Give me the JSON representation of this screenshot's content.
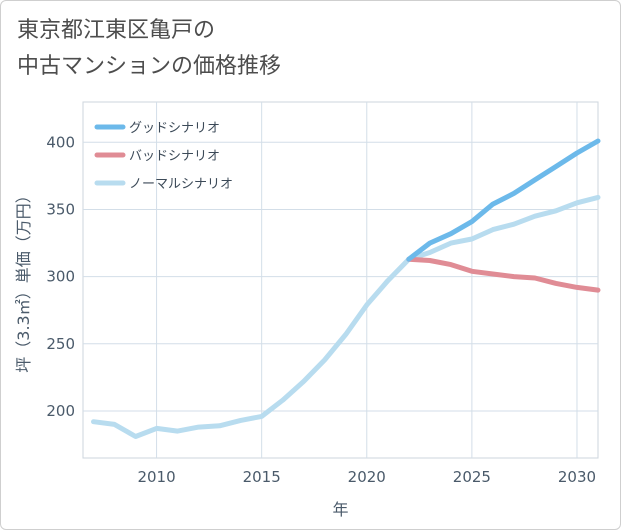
{
  "title": "東京都江東区亀戸の\n中古マンションの価格推移",
  "chart_data": {
    "type": "line",
    "title": "東京都江東区亀戸の 中古マンションの価格推移",
    "xlabel": "年",
    "ylabel": "坪（3.3㎡）単価（万円）",
    "xlim": [
      2006.5,
      2031
    ],
    "ylim": [
      165,
      430
    ],
    "x_ticks": [
      2010,
      2015,
      2020,
      2025,
      2030
    ],
    "y_ticks": [
      200,
      250,
      300,
      350,
      400
    ],
    "x_tick_labels": [
      "2010",
      "2015",
      "2020",
      "2025",
      "2030"
    ],
    "y_tick_labels": [
      "200",
      "250",
      "300",
      "350",
      "400"
    ],
    "grid": true,
    "legend_position": "top-left",
    "series": [
      {
        "name": "グッドシナリオ",
        "color": "#6cb9ea",
        "x": [
          2022,
          2023,
          2024,
          2025,
          2026,
          2027,
          2028,
          2029,
          2030,
          2031
        ],
        "values": [
          313,
          325,
          332,
          341,
          354,
          362,
          372,
          382,
          392,
          401
        ]
      },
      {
        "name": "バッドシナリオ",
        "color": "#e08c95",
        "x": [
          2022,
          2023,
          2024,
          2025,
          2026,
          2027,
          2028,
          2029,
          2030,
          2031
        ],
        "values": [
          313,
          312,
          309,
          304,
          302,
          300,
          299,
          295,
          292,
          290
        ]
      },
      {
        "name": "ノーマルシナリオ",
        "color": "#b8dcef",
        "x": [
          2007,
          2008,
          2009,
          2010,
          2011,
          2012,
          2013,
          2014,
          2015,
          2016,
          2017,
          2018,
          2019,
          2020,
          2021,
          2022,
          2023,
          2024,
          2025,
          2026,
          2027,
          2028,
          2029,
          2030,
          2031
        ],
        "values": [
          192,
          190,
          181,
          187,
          185,
          188,
          189,
          193,
          196,
          208,
          222,
          238,
          257,
          279,
          297,
          313,
          318,
          325,
          328,
          335,
          339,
          345,
          349,
          355,
          359
        ]
      }
    ]
  }
}
